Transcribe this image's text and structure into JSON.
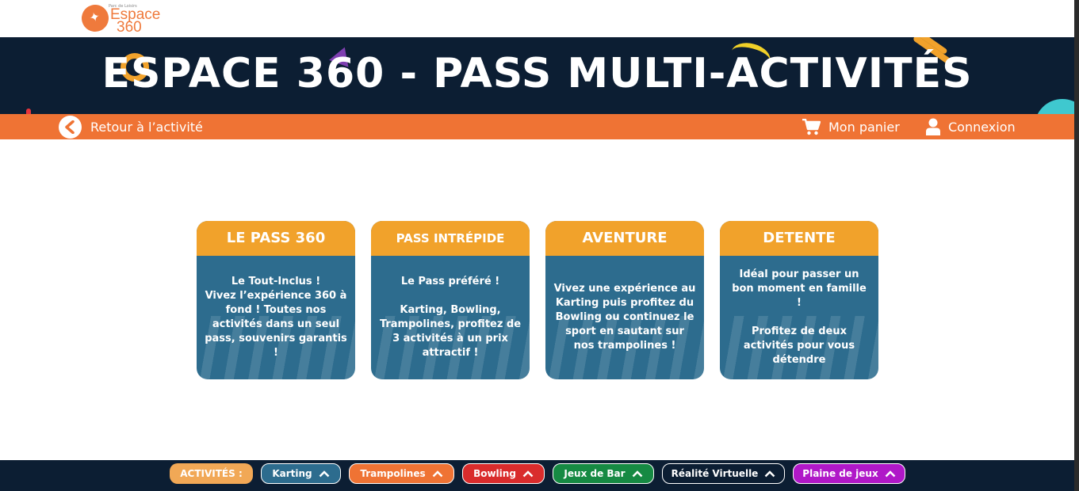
{
  "logo": {
    "tagline": "Parc de Loisirs",
    "line1": "Espace",
    "line2": "360"
  },
  "banner": {
    "title": "ESPACE 360 - PASS MULTI-ACTIVITÉS"
  },
  "nav": {
    "back_label": "Retour à l’activité",
    "cart_label": "Mon panier",
    "login_label": "Connexion"
  },
  "cards": [
    {
      "title": "LE PASS 360",
      "text": "Le Tout-Inclus !\nVivez l’expérience 360 à fond ! Toutes nos activités dans un seul pass, souvenirs garantis !"
    },
    {
      "title": "PASS INTRÉPIDE",
      "text": "Le Pass préféré !\n\nKarting, Bowling, Trampolines, profitez de 3 activités à un prix attractif !"
    },
    {
      "title": "AVENTURE",
      "text": "Vivez une expérience au Karting puis profitez du Bowling ou continuez le sport en sautant sur nos trampolines !"
    },
    {
      "title": "DETENTE",
      "text": "Idéal pour passer un bon moment en famille !\n\nProfitez de deux activités pour vous détendre"
    }
  ],
  "activities": {
    "label": "ACTIVITÉS :",
    "items": [
      "Karting",
      "Trampolines",
      "Bowling",
      "Jeux de Bar",
      "Réalité Virtuelle",
      "Plaine de jeux"
    ]
  },
  "colors": {
    "banner_bg": "#0c1e33",
    "nav_bg": "#ef7334",
    "card_header": "#f1a22b",
    "card_body": "#2d6c8e",
    "karting": "#2d6c8e",
    "trampolines": "#ef7334",
    "bowling": "#d92c2c",
    "jeux_de_bar": "#168a43",
    "realite_virtuelle": "#0c1e33",
    "plaine_de_jeux": "#b018c8"
  }
}
